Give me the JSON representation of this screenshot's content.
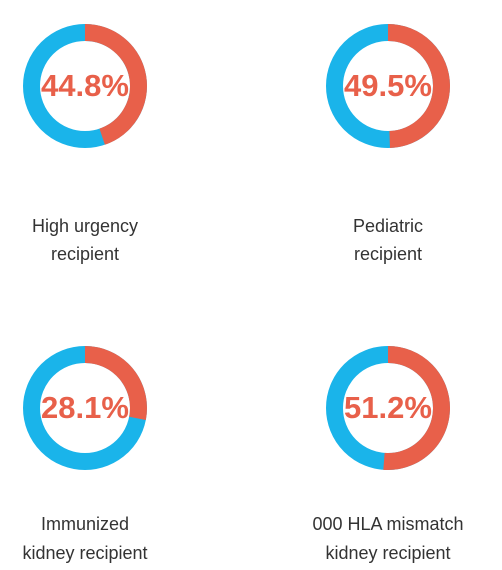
{
  "chart_data": [
    {
      "type": "donut",
      "title_lines": [
        "High urgency",
        "recipient"
      ],
      "values": [
        44.8
      ],
      "value_labels": [
        "44.8%"
      ],
      "color": "#e8604a",
      "track_color": "#1ab4ea"
    },
    {
      "type": "donut",
      "title_lines": [
        "Pediatric",
        "recipient"
      ],
      "values": [
        49.5
      ],
      "value_labels": [
        "49.5%"
      ],
      "color": "#e8604a",
      "track_color": "#1ab4ea"
    },
    {
      "type": "donut",
      "title_lines": [
        "Immunized",
        "kidney recipient"
      ],
      "values": [
        28.1
      ],
      "value_labels": [
        "28.1%"
      ],
      "color": "#e8604a",
      "track_color": "#1ab4ea"
    },
    {
      "type": "donut",
      "title_lines": [
        "000 HLA mismatch",
        "kidney recipient"
      ],
      "values": [
        51.2
      ],
      "value_labels": [
        "51.2%"
      ],
      "color": "#e8604a",
      "track_color": "#1ab4ea"
    }
  ]
}
